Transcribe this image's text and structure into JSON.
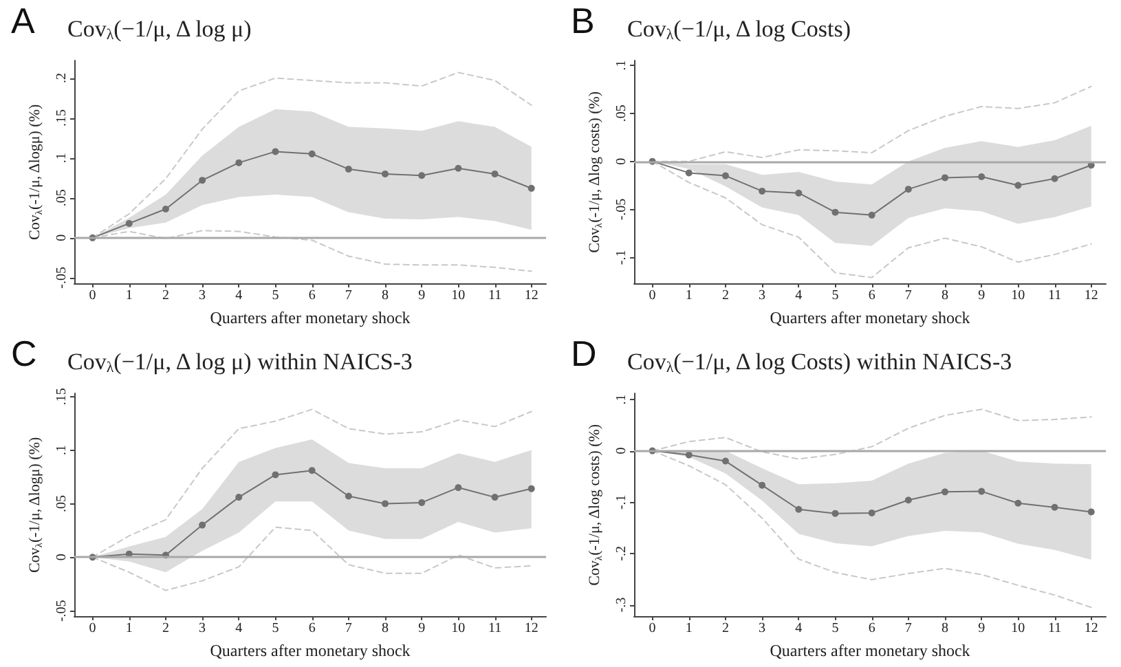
{
  "chart_data": [
    {
      "type": "line",
      "annotations": [
        "A"
      ],
      "title": "Cov$_{λ}$(−1/μ, Δ log μ)",
      "xlabel": "Quarters after monetary shock",
      "ylabel": "Cov$_{λ}$(-1/μ, Δlogμ) (%)",
      "x": [
        0,
        1,
        2,
        3,
        4,
        5,
        6,
        7,
        8,
        9,
        10,
        11,
        12
      ],
      "xlim": [
        -0.5,
        12.4
      ],
      "xticks": [
        0,
        1,
        2,
        3,
        4,
        5,
        6,
        7,
        8,
        9,
        10,
        11,
        12
      ],
      "ylim": [
        -0.057,
        0.222
      ],
      "yticks": [
        {
          "value": -0.05,
          "label": "-.05"
        },
        {
          "value": 0,
          "label": "0"
        },
        {
          "value": 0.05,
          "label": ".05"
        },
        {
          "value": 0.1,
          "label": ".1"
        },
        {
          "value": 0.15,
          "label": ".15"
        },
        {
          "value": 0.2,
          "label": ".2"
        }
      ],
      "marker": "circle",
      "ref_lines": [
        {
          "axis": "y",
          "value": 0,
          "color": "#a8a8a8"
        }
      ],
      "series": [
        {
          "color": "#707070",
          "values": [
            0,
            0.018,
            0.036,
            0.072,
            0.094,
            0.108,
            0.105,
            0.086,
            0.08,
            0.078,
            0.087,
            0.08,
            0.062
          ],
          "lower": [
            0,
            0.012,
            0.019,
            0.041,
            0.051,
            0.054,
            0.051,
            0.032,
            0.024,
            0.023,
            0.026,
            0.021,
            0.01
          ],
          "upper": [
            0,
            0.025,
            0.054,
            0.103,
            0.139,
            0.161,
            0.158,
            0.139,
            0.137,
            0.134,
            0.146,
            0.139,
            0.114
          ]
        },
        {
          "color": "#c8c8c8",
          "line_style": "dashed",
          "marker": "none",
          "values": [
            0,
            0.03,
            0.074,
            0.136,
            0.184,
            0.2,
            0.197,
            0.194,
            0.194,
            0.19,
            0.207,
            0.197,
            0.166
          ]
        },
        {
          "color": "#c8c8c8",
          "line_style": "dashed",
          "marker": "none",
          "values": [
            0,
            0.008,
            -0.001,
            0.009,
            0.008,
            0.001,
            -0.003,
            -0.023,
            -0.033,
            -0.034,
            -0.034,
            -0.037,
            -0.042
          ]
        }
      ]
    },
    {
      "type": "line",
      "annotations": [
        "B"
      ],
      "title": "Cov$_{λ}$(−1/μ, Δ log Costs)",
      "xlabel": "Quarters after monetary shock",
      "ylabel": "Cov$_{λ}$(-1/μ, Δlog costs) (%)",
      "x": [
        0,
        1,
        2,
        3,
        4,
        5,
        6,
        7,
        8,
        9,
        10,
        11,
        12
      ],
      "xlim": [
        -0.5,
        12.4
      ],
      "xticks": [
        0,
        1,
        2,
        3,
        4,
        5,
        6,
        7,
        8,
        9,
        10,
        11,
        12
      ],
      "ylim": [
        -0.127,
        0.105
      ],
      "yticks": [
        {
          "value": -0.1,
          "label": "-.1"
        },
        {
          "value": -0.05,
          "label": "-.05"
        },
        {
          "value": 0,
          "label": "0"
        },
        {
          "value": 0.05,
          "label": ".05"
        },
        {
          "value": 0.1,
          "label": ".1"
        }
      ],
      "marker": "circle",
      "ref_lines": [
        {
          "axis": "y",
          "value": 0,
          "color": "#a8a8a8"
        }
      ],
      "series": [
        {
          "color": "#707070",
          "values": [
            0,
            -0.012,
            -0.015,
            -0.031,
            -0.033,
            -0.053,
            -0.056,
            -0.029,
            -0.017,
            -0.016,
            -0.025,
            -0.018,
            -0.004
          ],
          "lower": [
            0,
            -0.008,
            -0.026,
            -0.048,
            -0.056,
            -0.085,
            -0.088,
            -0.059,
            -0.049,
            -0.052,
            -0.065,
            -0.058,
            -0.047
          ],
          "upper": [
            0,
            -0.003,
            -0.003,
            -0.014,
            -0.011,
            -0.021,
            -0.024,
            0.0,
            0.014,
            0.021,
            0.015,
            0.022,
            0.037
          ]
        },
        {
          "color": "#c8c8c8",
          "line_style": "dashed",
          "marker": "none",
          "values": [
            0,
            0,
            0.01,
            0.004,
            0.012,
            0.011,
            0.009,
            0.032,
            0.047,
            0.057,
            0.055,
            0.061,
            0.078
          ]
        },
        {
          "color": "#c8c8c8",
          "line_style": "dashed",
          "marker": "none",
          "values": [
            0,
            -0.022,
            -0.038,
            -0.066,
            -0.079,
            -0.116,
            -0.121,
            -0.09,
            -0.08,
            -0.089,
            -0.105,
            -0.097,
            -0.086
          ]
        }
      ]
    },
    {
      "type": "line",
      "annotations": [
        "C"
      ],
      "title": "Cov$_{λ}$(−1/μ, Δ log μ) within NAICS-3",
      "xlabel": "Quarters after monetary shock",
      "ylabel": "Cov$_{λ}$(-1/μ, Δlogμ) (%)",
      "x": [
        0,
        1,
        2,
        3,
        4,
        5,
        6,
        7,
        8,
        9,
        10,
        11,
        12
      ],
      "xlim": [
        -0.5,
        12.4
      ],
      "xticks": [
        0,
        1,
        2,
        3,
        4,
        5,
        6,
        7,
        8,
        9,
        10,
        11,
        12
      ],
      "ylim": [
        -0.055,
        0.153
      ],
      "yticks": [
        {
          "value": -0.05,
          "label": "-.05"
        },
        {
          "value": 0,
          "label": "0"
        },
        {
          "value": 0.05,
          "label": ".05"
        },
        {
          "value": 0.1,
          "label": ".1"
        },
        {
          "value": 0.15,
          "label": ".15"
        }
      ],
      "marker": "circle",
      "ref_lines": [
        {
          "axis": "y",
          "value": 0,
          "color": "#a8a8a8"
        }
      ],
      "series": [
        {
          "color": "#707070",
          "values": [
            0,
            0.003,
            0.002,
            0.03,
            0.056,
            0.077,
            0.081,
            0.057,
            0.05,
            0.051,
            0.065,
            0.056,
            0.064
          ],
          "lower": [
            0,
            -0.004,
            -0.014,
            0.006,
            0.023,
            0.052,
            0.052,
            0.025,
            0.017,
            0.017,
            0.033,
            0.023,
            0.027
          ],
          "upper": [
            0,
            0.01,
            0.019,
            0.045,
            0.089,
            0.102,
            0.11,
            0.088,
            0.083,
            0.083,
            0.097,
            0.089,
            0.1
          ]
        },
        {
          "color": "#c8c8c8",
          "line_style": "dashed",
          "marker": "none",
          "values": [
            0,
            0.02,
            0.035,
            0.083,
            0.12,
            0.127,
            0.138,
            0.12,
            0.115,
            0.117,
            0.128,
            0.122,
            0.136
          ]
        },
        {
          "color": "#c8c8c8",
          "line_style": "dashed",
          "marker": "none",
          "values": [
            0,
            -0.014,
            -0.031,
            -0.022,
            -0.009,
            0.028,
            0.025,
            -0.007,
            -0.015,
            -0.015,
            0.002,
            -0.01,
            -0.008
          ]
        }
      ]
    },
    {
      "type": "line",
      "annotations": [
        "D"
      ],
      "title": "Cov$_{λ}$(−1/μ, Δ log Costs) within NAICS-3",
      "xlabel": "Quarters after monetary shock",
      "ylabel": "Cov$_{λ}$(-1/μ, Δlog costs) (%)",
      "x": [
        0,
        1,
        2,
        3,
        4,
        5,
        6,
        7,
        8,
        9,
        10,
        11,
        12
      ],
      "xlim": [
        -0.5,
        12.4
      ],
      "xticks": [
        0,
        1,
        2,
        3,
        4,
        5,
        6,
        7,
        8,
        9,
        10,
        11,
        12
      ],
      "ylim": [
        -0.322,
        0.112
      ],
      "yticks": [
        {
          "value": -0.3,
          "label": "-.3"
        },
        {
          "value": -0.2,
          "label": "-.2"
        },
        {
          "value": -0.1,
          "label": "-.1"
        },
        {
          "value": 0,
          "label": "0"
        },
        {
          "value": 0.1,
          "label": ".1"
        }
      ],
      "marker": "circle",
      "ref_lines": [
        {
          "axis": "y",
          "value": 0,
          "color": "#a8a8a8"
        }
      ],
      "series": [
        {
          "color": "#707070",
          "values": [
            0,
            -0.008,
            -0.02,
            -0.067,
            -0.114,
            -0.122,
            -0.121,
            -0.096,
            -0.08,
            -0.079,
            -0.102,
            -0.11,
            -0.119
          ],
          "lower": [
            0,
            -0.012,
            -0.044,
            -0.097,
            -0.162,
            -0.18,
            -0.186,
            -0.166,
            -0.156,
            -0.159,
            -0.181,
            -0.193,
            -0.212
          ],
          "upper": [
            0,
            0,
            0,
            -0.034,
            -0.065,
            -0.063,
            -0.058,
            -0.025,
            -0.004,
            0,
            -0.021,
            -0.025,
            -0.026
          ]
        },
        {
          "color": "#c8c8c8",
          "line_style": "dashed",
          "marker": "none",
          "values": [
            0,
            0.018,
            0.026,
            -0.002,
            -0.016,
            -0.007,
            0.008,
            0.044,
            0.069,
            0.081,
            0.059,
            0.061,
            0.066
          ]
        },
        {
          "color": "#c8c8c8",
          "line_style": "dashed",
          "marker": "none",
          "values": [
            0,
            -0.029,
            -0.066,
            -0.131,
            -0.211,
            -0.237,
            -0.251,
            -0.239,
            -0.229,
            -0.241,
            -0.262,
            -0.281,
            -0.305
          ]
        }
      ]
    }
  ]
}
